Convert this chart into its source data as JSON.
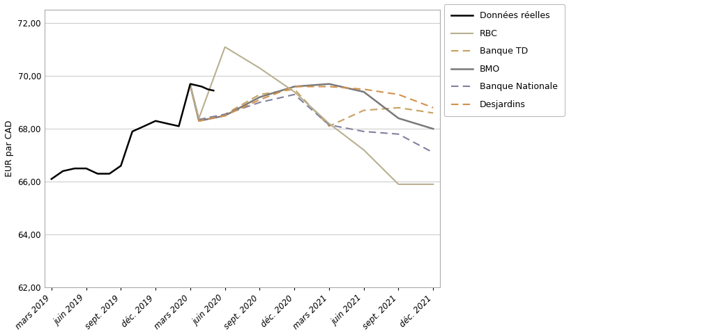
{
  "ylabel": "EUR par CAD",
  "xlabels": [
    "mars 2019",
    "juin 2019",
    "sept. 2019",
    "déc. 2019",
    "mars 2020",
    "juin 2020",
    "sept. 2020",
    "déc. 2020",
    "mars 2021",
    "juin 2021",
    "sept. 2021",
    "déc. 2021"
  ],
  "ylim": [
    62.0,
    72.5
  ],
  "yticks": [
    62.0,
    64.0,
    66.0,
    68.0,
    70.0,
    72.0
  ],
  "background_color": "#ffffff",
  "grid_color": "#c8c8c8",
  "tick_fontsize": 8.5,
  "ylabel_fontsize": 9,
  "legend_fontsize": 9,
  "donnees_x": [
    0,
    0.33,
    0.67,
    1,
    1.33,
    1.67,
    2,
    2.33,
    2.67,
    3,
    3.33,
    3.67,
    4,
    4.17,
    4.33,
    4.5,
    4.67
  ],
  "donnees_y": [
    66.1,
    66.4,
    66.5,
    66.5,
    66.3,
    66.3,
    66.6,
    67.9,
    68.1,
    68.3,
    68.2,
    68.1,
    69.7,
    69.65,
    69.6,
    69.5,
    69.45
  ],
  "rbc_x": [
    4.0,
    4.25,
    5.0,
    6.0,
    7.0,
    8.0,
    9.0,
    10.0,
    11.0
  ],
  "rbc_y": [
    69.65,
    68.4,
    71.1,
    70.3,
    69.4,
    68.2,
    67.2,
    65.9,
    65.9
  ],
  "rbc_color": "#b8b090",
  "td_x": [
    4.0,
    4.25,
    5.0,
    6.0,
    7.0,
    8.0,
    9.0,
    10.0,
    11.0
  ],
  "td_y": [
    69.65,
    68.35,
    68.55,
    69.3,
    69.5,
    68.1,
    68.7,
    68.8,
    68.6
  ],
  "td_color": "#c8a060",
  "bmo_x": [
    4.0,
    4.25,
    5.0,
    6.0,
    7.0,
    8.0,
    9.0,
    10.0,
    11.0
  ],
  "bmo_y": [
    69.65,
    68.3,
    68.5,
    69.2,
    69.6,
    69.7,
    69.4,
    68.4,
    68.0
  ],
  "bmo_color": "#787878",
  "bn_x": [
    4.0,
    4.25,
    5.0,
    6.0,
    7.0,
    8.0,
    9.0,
    10.0,
    11.0
  ],
  "bn_y": [
    69.65,
    68.35,
    68.55,
    69.0,
    69.3,
    68.15,
    67.9,
    67.8,
    67.1
  ],
  "bn_color": "#8080a0",
  "desj_x": [
    4.0,
    4.25,
    5.0,
    6.0,
    7.0,
    8.0,
    9.0,
    10.0,
    11.0
  ],
  "desj_y": [
    69.65,
    68.3,
    68.5,
    69.1,
    69.6,
    69.6,
    69.5,
    69.3,
    68.8
  ],
  "desj_color": "#d4904a"
}
